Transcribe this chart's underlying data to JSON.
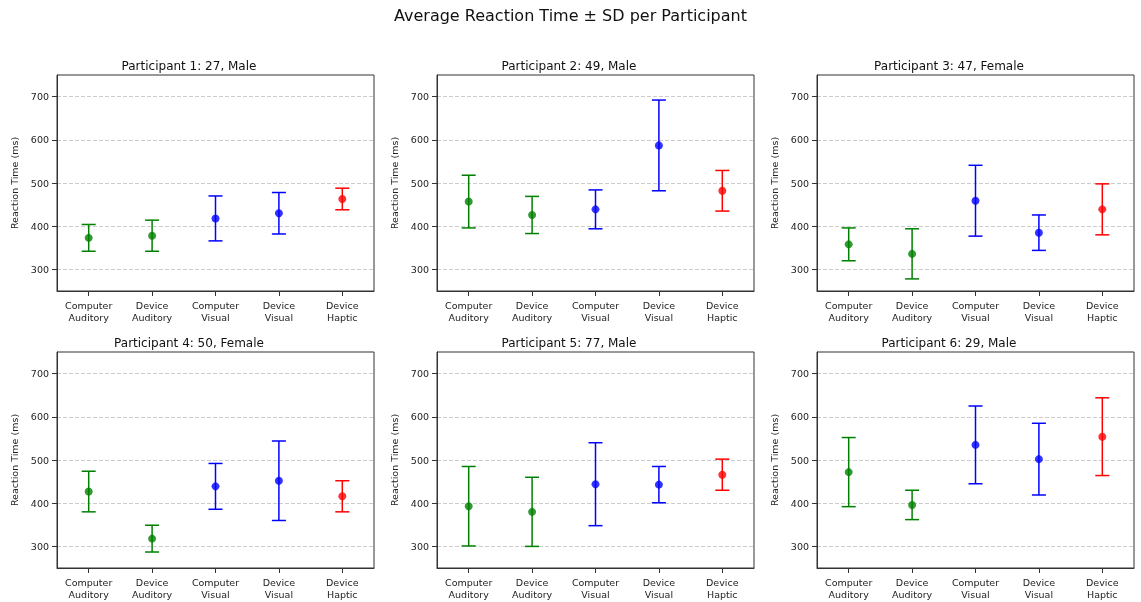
{
  "chart_data": [
    {
      "type": "scatter",
      "annotations": [
        "Average Reaction Time ± SD per Participant"
      ],
      "title": "Participant 1: 27, Male",
      "ylabel": "Reaction Time (ms)",
      "categories": [
        "Computer\nAuditory",
        "Device\nAuditory",
        "Computer\nVisual",
        "Device\nVisual",
        "Device\nHaptic"
      ],
      "values": [
        373,
        378,
        418,
        430,
        463
      ],
      "errors": [
        31,
        36,
        52,
        48,
        25
      ],
      "colors": [
        "#008000",
        "#008000",
        "#0000ff",
        "#0000ff",
        "#ff0000"
      ],
      "ylim": [
        250,
        750
      ],
      "yticks": [
        300,
        400,
        500,
        600,
        700
      ],
      "grid": "y",
      "marker": "circle"
    },
    {
      "type": "scatter",
      "title": "Participant 2: 49, Male",
      "ylabel": "Reaction Time (ms)",
      "categories": [
        "Computer\nAuditory",
        "Device\nAuditory",
        "Computer\nVisual",
        "Device\nVisual",
        "Device\nHaptic"
      ],
      "values": [
        457,
        426,
        439,
        587,
        482
      ],
      "errors": [
        61,
        43,
        45,
        105,
        47
      ],
      "colors": [
        "#008000",
        "#008000",
        "#0000ff",
        "#0000ff",
        "#ff0000"
      ],
      "ylim": [
        250,
        750
      ],
      "yticks": [
        300,
        400,
        500,
        600,
        700
      ],
      "grid": "y",
      "marker": "circle"
    },
    {
      "type": "scatter",
      "title": "Participant 3: 47, Female",
      "ylabel": "Reaction Time (ms)",
      "categories": [
        "Computer\nAuditory",
        "Device\nAuditory",
        "Computer\nVisual",
        "Device\nVisual",
        "Device\nHaptic"
      ],
      "values": [
        358,
        336,
        459,
        385,
        439
      ],
      "errors": [
        38,
        58,
        82,
        41,
        59
      ],
      "colors": [
        "#008000",
        "#008000",
        "#0000ff",
        "#0000ff",
        "#ff0000"
      ],
      "ylim": [
        250,
        750
      ],
      "yticks": [
        300,
        400,
        500,
        600,
        700
      ],
      "grid": "y",
      "marker": "circle"
    },
    {
      "type": "scatter",
      "title": "Participant 4: 50, Female",
      "ylabel": "Reaction Time (ms)",
      "categories": [
        "Computer\nAuditory",
        "Device\nAuditory",
        "Computer\nVisual",
        "Device\nVisual",
        "Device\nHaptic"
      ],
      "values": [
        427,
        318,
        439,
        452,
        416
      ],
      "errors": [
        47,
        31,
        53,
        92,
        36
      ],
      "colors": [
        "#008000",
        "#008000",
        "#0000ff",
        "#0000ff",
        "#ff0000"
      ],
      "ylim": [
        250,
        750
      ],
      "yticks": [
        300,
        400,
        500,
        600,
        700
      ],
      "grid": "y",
      "marker": "circle"
    },
    {
      "type": "scatter",
      "title": "Participant 5: 77, Male",
      "ylabel": "Reaction Time (ms)",
      "categories": [
        "Computer\nAuditory",
        "Device\nAuditory",
        "Computer\nVisual",
        "Device\nVisual",
        "Device\nHaptic"
      ],
      "values": [
        393,
        380,
        444,
        443,
        466
      ],
      "errors": [
        92,
        80,
        96,
        42,
        36
      ],
      "colors": [
        "#008000",
        "#008000",
        "#0000ff",
        "#0000ff",
        "#ff0000"
      ],
      "ylim": [
        250,
        750
      ],
      "yticks": [
        300,
        400,
        500,
        600,
        700
      ],
      "grid": "y",
      "marker": "circle"
    },
    {
      "type": "scatter",
      "title": "Participant 6: 29, Male",
      "ylabel": "Reaction Time (ms)",
      "categories": [
        "Computer\nAuditory",
        "Device\nAuditory",
        "Computer\nVisual",
        "Device\nVisual",
        "Device\nHaptic"
      ],
      "values": [
        472,
        396,
        535,
        502,
        554
      ],
      "errors": [
        80,
        34,
        90,
        83,
        90
      ],
      "colors": [
        "#008000",
        "#008000",
        "#0000ff",
        "#0000ff",
        "#ff0000"
      ],
      "ylim": [
        250,
        750
      ],
      "yticks": [
        300,
        400,
        500,
        600,
        700
      ],
      "grid": "y",
      "marker": "circle"
    }
  ]
}
